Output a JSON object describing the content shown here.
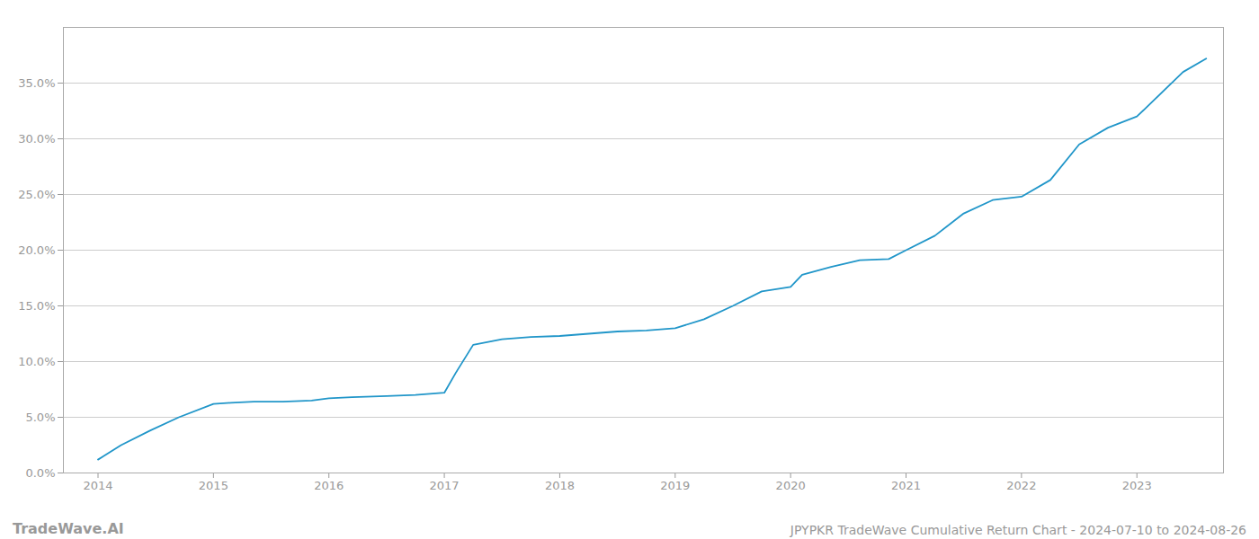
{
  "chart_data": {
    "type": "line",
    "title": "JPYPKR TradeWave Cumulative Return Chart - 2024-07-10 to 2024-08-26",
    "annotations": [
      "TradeWave.AI"
    ],
    "x": [
      2014.0,
      2014.2,
      2014.45,
      2014.7,
      2015.0,
      2015.15,
      2015.35,
      2015.6,
      2015.85,
      2016.0,
      2016.2,
      2016.5,
      2016.75,
      2017.0,
      2017.1,
      2017.25,
      2017.5,
      2017.75,
      2018.0,
      2018.25,
      2018.5,
      2018.75,
      2019.0,
      2019.25,
      2019.5,
      2019.75,
      2020.0,
      2020.1,
      2020.35,
      2020.6,
      2020.85,
      2021.0,
      2021.25,
      2021.5,
      2021.75,
      2022.0,
      2022.25,
      2022.5,
      2022.75,
      2023.0,
      2023.4,
      2023.6
    ],
    "values": [
      0.012,
      0.025,
      0.038,
      0.05,
      0.062,
      0.063,
      0.064,
      0.064,
      0.065,
      0.067,
      0.068,
      0.069,
      0.07,
      0.072,
      0.09,
      0.115,
      0.12,
      0.122,
      0.123,
      0.125,
      0.127,
      0.128,
      0.13,
      0.138,
      0.15,
      0.163,
      0.167,
      0.178,
      0.185,
      0.191,
      0.192,
      0.2,
      0.213,
      0.233,
      0.245,
      0.248,
      0.263,
      0.295,
      0.31,
      0.32,
      0.36,
      0.372
    ],
    "color": "#2196C9",
    "xlim": [
      2013.7,
      2023.75
    ],
    "xticks": [
      2014,
      2015,
      2016,
      2017,
      2018,
      2019,
      2020,
      2021,
      2022,
      2023
    ],
    "ylim": [
      0.0,
      0.4
    ],
    "yticks": [
      {
        "value": 0.0,
        "label": "0.0%"
      },
      {
        "value": 0.05,
        "label": "5.0%"
      },
      {
        "value": 0.1,
        "label": "10.0%"
      },
      {
        "value": 0.15,
        "label": "15.0%"
      },
      {
        "value": 0.2,
        "label": "20.0%"
      },
      {
        "value": 0.25,
        "label": "25.0%"
      },
      {
        "value": 0.3,
        "label": "30.0%"
      },
      {
        "value": 0.35,
        "label": "35.0%"
      }
    ],
    "grid": "y"
  }
}
